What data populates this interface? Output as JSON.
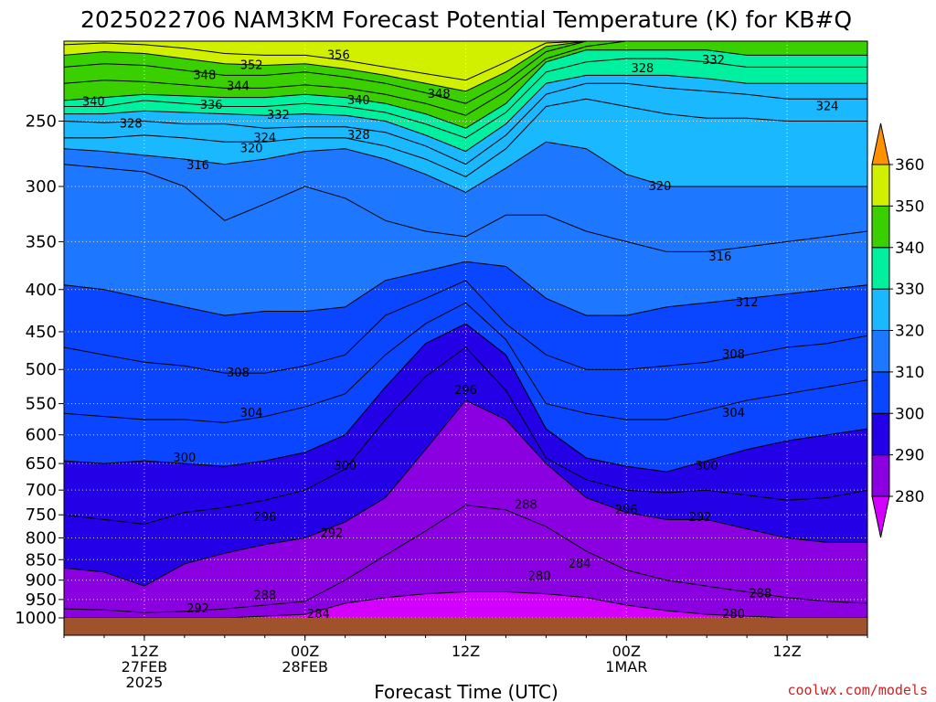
{
  "chart_data": {
    "type": "heatmap",
    "title": "2025022706 NAM3KM Forecast Potential Temperature (K) for KB#Q",
    "xlabel": "Forecast Time (UTC)",
    "ylabel": "",
    "y_scale": "log",
    "y_axis_reversed": true,
    "y_range": [
      1000,
      200
    ],
    "y_ticks": [
      250,
      300,
      350,
      400,
      450,
      500,
      550,
      600,
      650,
      700,
      750,
      800,
      850,
      900,
      950,
      1000
    ],
    "x_range_hours": [
      0,
      60
    ],
    "x_ticks": [
      {
        "hour": 6,
        "label": [
          "12Z",
          "27FEB",
          "2025"
        ]
      },
      {
        "hour": 18,
        "label": [
          "00Z",
          "28FEB"
        ]
      },
      {
        "hour": 30,
        "label": [
          "12Z"
        ]
      },
      {
        "hour": 42,
        "label": [
          "00Z",
          "1MAR"
        ]
      },
      {
        "hour": 54,
        "label": [
          "12Z"
        ]
      }
    ],
    "grid": true,
    "colorbar": {
      "levels": [
        280,
        290,
        300,
        310,
        320,
        330,
        340,
        350,
        360
      ],
      "colors": [
        "#d400ff",
        "#8a00e0",
        "#2400e6",
        "#0a46ff",
        "#1e78ff",
        "#19b8ff",
        "#00f0a0",
        "#3ad000",
        "#d0f000",
        "#ffd000",
        "#ff9000"
      ],
      "tick_labels": [
        "280",
        "290",
        "300",
        "310",
        "320",
        "330",
        "340",
        "350",
        "360"
      ]
    },
    "hours": [
      0,
      3,
      6,
      9,
      12,
      15,
      18,
      21,
      24,
      27,
      30,
      33,
      36,
      39,
      42,
      45,
      48,
      51,
      54,
      57,
      60
    ],
    "isentropes": [
      {
        "theta": 284,
        "p": [
          1000,
          1000,
          1000,
          1000,
          1000,
          995,
          990,
          960,
          945,
          935,
          930,
          930,
          935,
          945,
          965,
          980,
          990,
          995,
          1000,
          1000,
          1000
        ]
      },
      {
        "theta": 288,
        "p": [
          975,
          978,
          985,
          982,
          975,
          965,
          955,
          900,
          840,
          785,
          730,
          740,
          775,
          830,
          875,
          900,
          915,
          930,
          945,
          955,
          960
        ]
      },
      {
        "theta": 292,
        "p": [
          870,
          880,
          915,
          860,
          835,
          815,
          800,
          765,
          715,
          625,
          545,
          575,
          650,
          715,
          745,
          760,
          760,
          780,
          800,
          810,
          810
        ]
      },
      {
        "theta": 296,
        "p": [
          750,
          760,
          770,
          745,
          735,
          720,
          700,
          660,
          575,
          510,
          470,
          530,
          640,
          680,
          700,
          705,
          700,
          710,
          720,
          715,
          700
        ]
      },
      {
        "theta": 300,
        "p": [
          645,
          650,
          645,
          650,
          655,
          645,
          630,
          600,
          525,
          465,
          440,
          480,
          590,
          640,
          655,
          665,
          645,
          625,
          610,
          600,
          590
        ]
      },
      {
        "theta": 304,
        "p": [
          565,
          570,
          575,
          575,
          580,
          570,
          555,
          535,
          480,
          440,
          415,
          460,
          550,
          565,
          575,
          575,
          560,
          545,
          535,
          525,
          515
        ]
      },
      {
        "theta": 308,
        "p": [
          470,
          480,
          490,
          495,
          505,
          505,
          495,
          480,
          430,
          410,
          390,
          440,
          480,
          500,
          500,
          495,
          490,
          480,
          470,
          465,
          455
        ]
      },
      {
        "theta": 312,
        "p": [
          395,
          400,
          410,
          420,
          430,
          425,
          425,
          420,
          390,
          380,
          370,
          375,
          410,
          430,
          430,
          420,
          415,
          410,
          405,
          400,
          395
        ]
      },
      {
        "theta": 316,
        "p": [
          282,
          285,
          288,
          300,
          330,
          315,
          300,
          310,
          330,
          340,
          345,
          325,
          325,
          340,
          350,
          360,
          360,
          355,
          350,
          345,
          340
        ]
      },
      {
        "theta": 320,
        "p": [
          270,
          272,
          275,
          278,
          282,
          278,
          272,
          270,
          278,
          290,
          305,
          285,
          265,
          270,
          290,
          300,
          300,
          300,
          300,
          300,
          300
        ]
      },
      {
        "theta": 324,
        "p": [
          262,
          262,
          260,
          262,
          265,
          265,
          262,
          262,
          268,
          278,
          292,
          270,
          240,
          235,
          240,
          245,
          248,
          248,
          250,
          250,
          250
        ]
      },
      {
        "theta": 328,
        "p": [
          250,
          251,
          250,
          252,
          252,
          255,
          254,
          254,
          258,
          268,
          282,
          260,
          232,
          225,
          225,
          228,
          230,
          232,
          235,
          235,
          235
        ]
      },
      {
        "theta": 332,
        "p": [
          245,
          245,
          243,
          244,
          245,
          246,
          245,
          246,
          250,
          260,
          272,
          252,
          225,
          220,
          220,
          220,
          222,
          225,
          225,
          225,
          225
        ]
      },
      {
        "theta": 336,
        "p": [
          240,
          240,
          236,
          238,
          240,
          240,
          238,
          240,
          244,
          252,
          262,
          244,
          218,
          212,
          210,
          210,
          212,
          215,
          215,
          215,
          215
        ]
      },
      {
        "theta": 340,
        "p": [
          236,
          234,
          232,
          233,
          234,
          234,
          232,
          234,
          238,
          245,
          255,
          238,
          212,
          205,
          205,
          205,
          205,
          208,
          208,
          208,
          208
        ]
      },
      {
        "theta": 344,
        "p": [
          225,
          223,
          224,
          226,
          228,
          228,
          226,
          228,
          232,
          238,
          246,
          230,
          210,
          203,
          200,
          200,
          200,
          200,
          200,
          200,
          200
        ]
      },
      {
        "theta": 348,
        "p": [
          215,
          213,
          214,
          217,
          220,
          220,
          218,
          221,
          225,
          231,
          238,
          224,
          206,
          200,
          200,
          200,
          200,
          200,
          200,
          200,
          200
        ]
      },
      {
        "theta": 352,
        "p": [
          208,
          206,
          207,
          210,
          213,
          214,
          213,
          216,
          220,
          225,
          230,
          218,
          203,
          200,
          200,
          200,
          200,
          200,
          200,
          200,
          200
        ]
      },
      {
        "theta": 356,
        "p": [
          202,
          201,
          202,
          204,
          207,
          208,
          208,
          211,
          215,
          219,
          223,
          212,
          201,
          200,
          200,
          200,
          200,
          200,
          200,
          200,
          200
        ]
      }
    ],
    "contour_labels": [
      {
        "text": "356",
        "hour": 20.5,
        "p": 208
      },
      {
        "text": "352",
        "hour": 14,
        "p": 214
      },
      {
        "text": "348",
        "hour": 10.5,
        "p": 220
      },
      {
        "text": "344",
        "hour": 13,
        "p": 227
      },
      {
        "text": "348",
        "hour": 28,
        "p": 232
      },
      {
        "text": "340",
        "hour": 2.2,
        "p": 237
      },
      {
        "text": "336",
        "hour": 11,
        "p": 239
      },
      {
        "text": "340",
        "hour": 22,
        "p": 236
      },
      {
        "text": "332",
        "hour": 16,
        "p": 246
      },
      {
        "text": "328",
        "hour": 5,
        "p": 252
      },
      {
        "text": "328",
        "hour": 22,
        "p": 260
      },
      {
        "text": "324",
        "hour": 15,
        "p": 262
      },
      {
        "text": "320",
        "hour": 14,
        "p": 270
      },
      {
        "text": "316",
        "hour": 10,
        "p": 283
      },
      {
        "text": "328",
        "hour": 43.2,
        "p": 216
      },
      {
        "text": "332",
        "hour": 48.5,
        "p": 211
      },
      {
        "text": "324",
        "hour": 57,
        "p": 240
      },
      {
        "text": "320",
        "hour": 44.5,
        "p": 300
      },
      {
        "text": "316",
        "hour": 49,
        "p": 365
      },
      {
        "text": "312",
        "hour": 51,
        "p": 415
      },
      {
        "text": "308",
        "hour": 13,
        "p": 505
      },
      {
        "text": "308",
        "hour": 50,
        "p": 480
      },
      {
        "text": "304",
        "hour": 14,
        "p": 565
      },
      {
        "text": "304",
        "hour": 50,
        "p": 565
      },
      {
        "text": "300",
        "hour": 9,
        "p": 640
      },
      {
        "text": "300",
        "hour": 21,
        "p": 655
      },
      {
        "text": "300",
        "hour": 48,
        "p": 655
      },
      {
        "text": "296",
        "hour": 30,
        "p": 530
      },
      {
        "text": "296",
        "hour": 15,
        "p": 755
      },
      {
        "text": "296",
        "hour": 42,
        "p": 740
      },
      {
        "text": "292",
        "hour": 20,
        "p": 790
      },
      {
        "text": "292",
        "hour": 47.5,
        "p": 755
      },
      {
        "text": "292",
        "hour": 10,
        "p": 975
      },
      {
        "text": "288",
        "hour": 15,
        "p": 940
      },
      {
        "text": "288",
        "hour": 34.5,
        "p": 730
      },
      {
        "text": "288",
        "hour": 52,
        "p": 935
      },
      {
        "text": "284",
        "hour": 38.5,
        "p": 860
      },
      {
        "text": "284",
        "hour": 19,
        "p": 990
      },
      {
        "text": "280",
        "hour": 35.5,
        "p": 890
      },
      {
        "text": "280",
        "hour": 50,
        "p": 990
      }
    ]
  },
  "credit": "coolwx.com/models"
}
